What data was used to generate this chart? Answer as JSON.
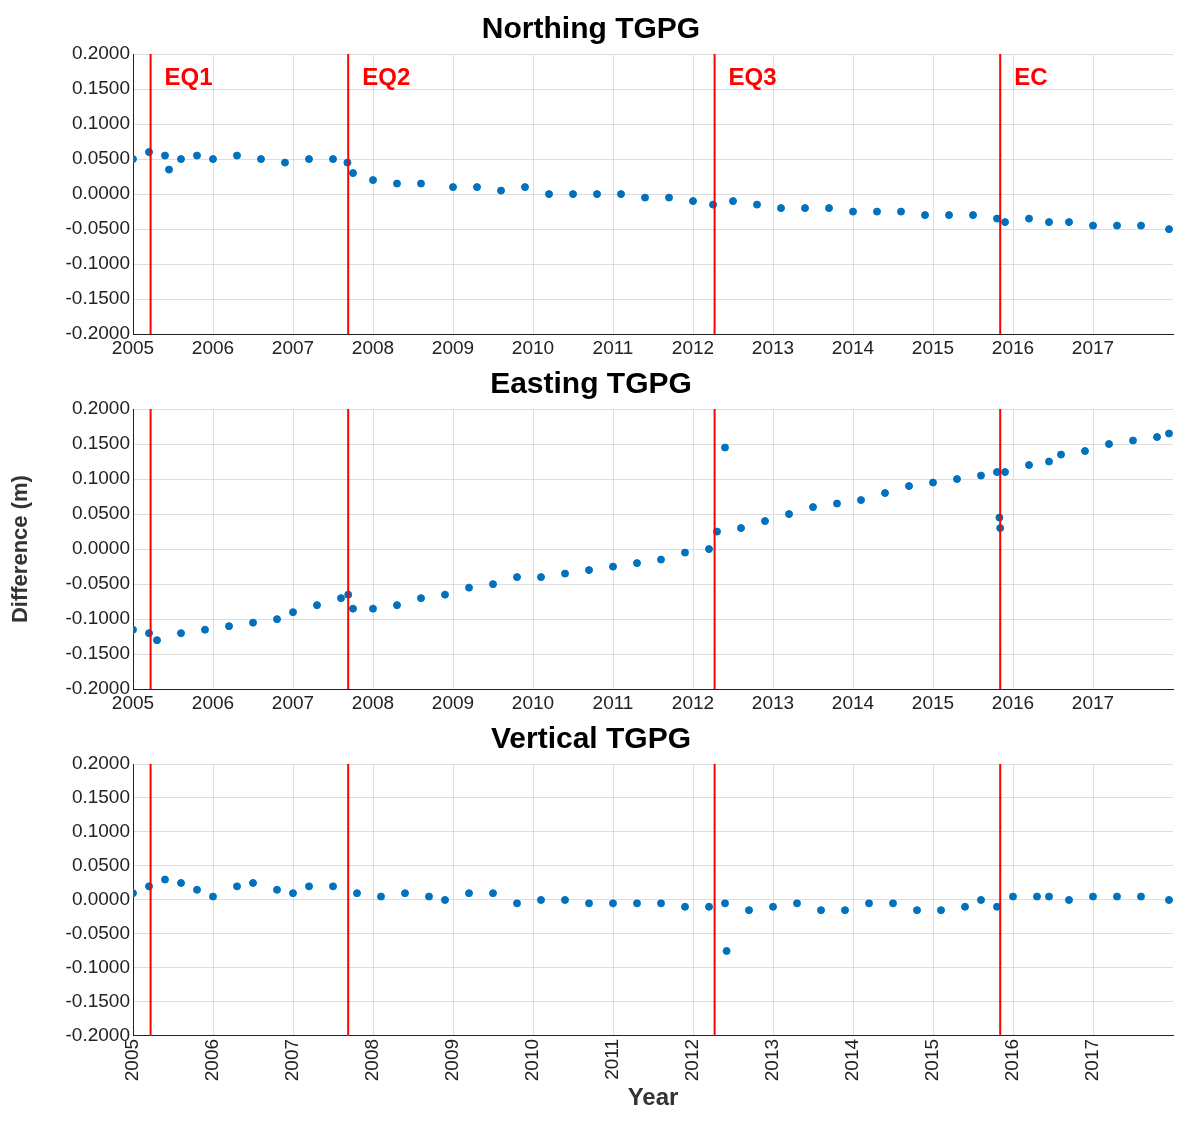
{
  "chart_data": [
    {
      "type": "scatter",
      "title": "Northing TGPG",
      "color": "#0072bd",
      "marker": "circle",
      "grid": true,
      "xlim": [
        2005,
        2018
      ],
      "ylim": [
        -0.2,
        0.2
      ],
      "xticks": [
        2005,
        2006,
        2007,
        2008,
        2009,
        2010,
        2011,
        2012,
        2013,
        2014,
        2015,
        2016,
        2017
      ],
      "yticks": [
        {
          "value": -0.2,
          "label": "-0.2000"
        },
        {
          "value": -0.15,
          "label": "-0.1500"
        },
        {
          "value": -0.1,
          "label": "-0.1000"
        },
        {
          "value": -0.05,
          "label": "-0.0500"
        },
        {
          "value": 0,
          "label": "0.0000"
        },
        {
          "value": 0.05,
          "label": "0.0500"
        },
        {
          "value": 0.1,
          "label": "0.1000"
        },
        {
          "value": 0.15,
          "label": "0.1500"
        },
        {
          "value": 0.2,
          "label": "0.2000"
        }
      ],
      "ref_lines": [
        {
          "axis": "x",
          "value": 2005.22,
          "label": "EQ1",
          "color": "#ff0000"
        },
        {
          "axis": "x",
          "value": 2007.69,
          "label": "EQ2",
          "color": "#ff0000"
        },
        {
          "axis": "x",
          "value": 2012.27,
          "label": "EQ3",
          "color": "#ff0000"
        },
        {
          "axis": "x",
          "value": 2015.84,
          "label": "EC",
          "color": "#ff0000"
        }
      ],
      "x": [
        2005.0,
        2005.2,
        2005.45,
        2005.4,
        2005.6,
        2005.8,
        2006.0,
        2006.3,
        2006.6,
        2006.9,
        2007.2,
        2007.5,
        2007.68,
        2007.75,
        2008.0,
        2008.3,
        2008.6,
        2009.0,
        2009.3,
        2009.6,
        2009.9,
        2010.2,
        2010.5,
        2010.8,
        2011.1,
        2011.4,
        2011.7,
        2012.0,
        2012.25,
        2012.5,
        2012.8,
        2013.1,
        2013.4,
        2013.7,
        2014.0,
        2014.3,
        2014.6,
        2014.9,
        2015.2,
        2015.5,
        2015.8,
        2015.9,
        2016.2,
        2016.45,
        2016.7,
        2017.0,
        2017.3,
        2017.6,
        2017.95
      ],
      "values": [
        0.05,
        0.06,
        0.035,
        0.055,
        0.05,
        0.055,
        0.05,
        0.055,
        0.05,
        0.045,
        0.05,
        0.05,
        0.045,
        0.03,
        0.02,
        0.015,
        0.015,
        0.01,
        0.01,
        0.005,
        0.01,
        0.0,
        0.0,
        0.0,
        0.0,
        -0.005,
        -0.005,
        -0.01,
        -0.015,
        -0.01,
        -0.015,
        -0.02,
        -0.02,
        -0.02,
        -0.025,
        -0.025,
        -0.025,
        -0.03,
        -0.03,
        -0.03,
        -0.035,
        -0.04,
        -0.035,
        -0.04,
        -0.04,
        -0.045,
        -0.045,
        -0.045,
        -0.05
      ]
    },
    {
      "type": "scatter",
      "title": "Easting TGPG",
      "ylabel": "Difference (m)",
      "color": "#0072bd",
      "marker": "circle",
      "grid": true,
      "xlim": [
        2005,
        2018
      ],
      "ylim": [
        -0.2,
        0.2
      ],
      "xticks": [
        2005,
        2006,
        2007,
        2008,
        2009,
        2010,
        2011,
        2012,
        2013,
        2014,
        2015,
        2016,
        2017
      ],
      "yticks": [
        {
          "value": -0.2,
          "label": "-0.2000"
        },
        {
          "value": -0.15,
          "label": "-0.1500"
        },
        {
          "value": -0.1,
          "label": "-0.1000"
        },
        {
          "value": -0.05,
          "label": "-0.0500"
        },
        {
          "value": 0,
          "label": "0.0000"
        },
        {
          "value": 0.05,
          "label": "0.0500"
        },
        {
          "value": 0.1,
          "label": "0.1000"
        },
        {
          "value": 0.15,
          "label": "0.1500"
        },
        {
          "value": 0.2,
          "label": "0.2000"
        }
      ],
      "ref_lines": [
        {
          "axis": "x",
          "value": 2005.22,
          "color": "#ff0000"
        },
        {
          "axis": "x",
          "value": 2007.69,
          "color": "#ff0000"
        },
        {
          "axis": "x",
          "value": 2012.27,
          "color": "#ff0000"
        },
        {
          "axis": "x",
          "value": 2015.84,
          "color": "#ff0000"
        }
      ],
      "x": [
        2005.0,
        2005.2,
        2005.3,
        2005.6,
        2005.9,
        2006.2,
        2006.5,
        2006.8,
        2007.0,
        2007.3,
        2007.6,
        2007.69,
        2007.75,
        2008.0,
        2008.3,
        2008.6,
        2008.9,
        2009.2,
        2009.5,
        2009.8,
        2010.1,
        2010.4,
        2010.7,
        2011.0,
        2011.3,
        2011.6,
        2011.9,
        2012.2,
        2012.3,
        2012.4,
        2012.6,
        2012.9,
        2013.2,
        2013.5,
        2013.8,
        2014.1,
        2014.4,
        2014.7,
        2015.0,
        2015.3,
        2015.6,
        2015.8,
        2015.83,
        2015.84,
        2015.9,
        2016.2,
        2016.45,
        2016.6,
        2016.9,
        2017.2,
        2017.5,
        2017.8,
        2017.95
      ],
      "values": [
        -0.115,
        -0.12,
        -0.13,
        -0.12,
        -0.115,
        -0.11,
        -0.105,
        -0.1,
        -0.09,
        -0.08,
        -0.07,
        -0.065,
        -0.085,
        -0.085,
        -0.08,
        -0.07,
        -0.065,
        -0.055,
        -0.05,
        -0.04,
        -0.04,
        -0.035,
        -0.03,
        -0.025,
        -0.02,
        -0.015,
        -0.005,
        0.0,
        0.025,
        0.145,
        0.03,
        0.04,
        0.05,
        0.06,
        0.065,
        0.07,
        0.08,
        0.09,
        0.095,
        0.1,
        0.105,
        0.11,
        0.045,
        0.03,
        0.11,
        0.12,
        0.125,
        0.135,
        0.14,
        0.15,
        0.155,
        0.16,
        0.165
      ]
    },
    {
      "type": "scatter",
      "title": "Vertical TGPG",
      "xlabel": "Year",
      "color": "#0072bd",
      "marker": "circle",
      "grid": true,
      "xlim": [
        2005,
        2018
      ],
      "ylim": [
        -0.2,
        0.2
      ],
      "xticks": [
        2005,
        2006,
        2007,
        2008,
        2009,
        2010,
        2011,
        2012,
        2013,
        2014,
        2015,
        2016,
        2017
      ],
      "yticks": [
        {
          "value": -0.2,
          "label": "-0.2000"
        },
        {
          "value": -0.15,
          "label": "-0.1500"
        },
        {
          "value": -0.1,
          "label": "-0.1000"
        },
        {
          "value": -0.05,
          "label": "-0.0500"
        },
        {
          "value": 0,
          "label": "0.0000"
        },
        {
          "value": 0.05,
          "label": "0.0500"
        },
        {
          "value": 0.1,
          "label": "0.1000"
        },
        {
          "value": 0.15,
          "label": "0.1500"
        },
        {
          "value": 0.2,
          "label": "0.2000"
        }
      ],
      "ref_lines": [
        {
          "axis": "x",
          "value": 2005.22,
          "color": "#ff0000"
        },
        {
          "axis": "x",
          "value": 2007.69,
          "color": "#ff0000"
        },
        {
          "axis": "x",
          "value": 2012.27,
          "color": "#ff0000"
        },
        {
          "axis": "x",
          "value": 2015.84,
          "color": "#ff0000"
        }
      ],
      "x": [
        2005.0,
        2005.2,
        2005.4,
        2005.6,
        2005.8,
        2006.0,
        2006.3,
        2006.5,
        2006.8,
        2007.0,
        2007.2,
        2007.5,
        2007.8,
        2008.1,
        2008.4,
        2008.7,
        2008.9,
        2009.2,
        2009.5,
        2009.8,
        2010.1,
        2010.4,
        2010.7,
        2011.0,
        2011.3,
        2011.6,
        2011.9,
        2012.2,
        2012.4,
        2012.42,
        2012.7,
        2013.0,
        2013.3,
        2013.6,
        2013.9,
        2014.2,
        2014.5,
        2014.8,
        2015.1,
        2015.4,
        2015.6,
        2015.8,
        2016.0,
        2016.3,
        2016.45,
        2016.7,
        2017.0,
        2017.3,
        2017.6,
        2017.95
      ],
      "values": [
        0.01,
        0.02,
        0.03,
        0.025,
        0.015,
        0.005,
        0.02,
        0.025,
        0.015,
        0.01,
        0.02,
        0.02,
        0.01,
        0.005,
        0.01,
        0.005,
        0.0,
        0.01,
        0.01,
        -0.005,
        0.0,
        0.0,
        -0.005,
        -0.005,
        -0.005,
        -0.005,
        -0.01,
        -0.01,
        -0.005,
        -0.075,
        -0.015,
        -0.01,
        -0.005,
        -0.015,
        -0.015,
        -0.005,
        -0.005,
        -0.015,
        -0.015,
        -0.01,
        0.0,
        -0.01,
        0.005,
        0.005,
        0.005,
        0.0,
        0.005,
        0.005,
        0.005,
        0.0
      ]
    }
  ]
}
